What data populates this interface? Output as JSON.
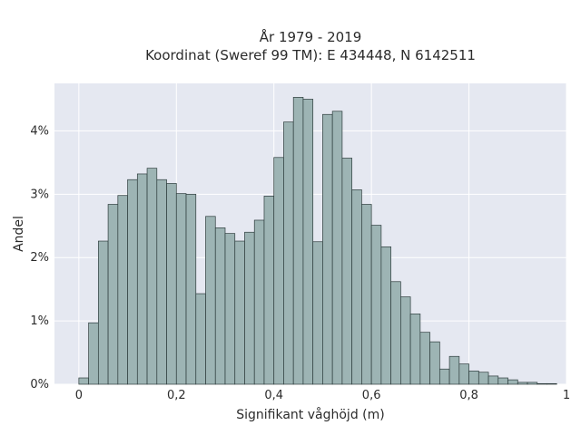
{
  "chart_data": {
    "type": "bar",
    "title_line1": "År 1979 - 2019",
    "title_line2": "Koordinat (Sweref 99 TM): E 434448, N 6142511",
    "xlabel": "Signifikant våghöjd (m)",
    "ylabel": "Andel",
    "xlim": [
      -0.05,
      1.0
    ],
    "ylim": [
      0,
      0.0475
    ],
    "x_ticks": [
      {
        "value": 0,
        "label": "0"
      },
      {
        "value": 0.2,
        "label": "0,2"
      },
      {
        "value": 0.4,
        "label": "0,4"
      },
      {
        "value": 0.6,
        "label": "0,6"
      },
      {
        "value": 0.8,
        "label": "0,8"
      },
      {
        "value": 1.0,
        "label": "1"
      }
    ],
    "y_ticks": [
      {
        "value": 0,
        "label": "0%"
      },
      {
        "value": 0.01,
        "label": "1%"
      },
      {
        "value": 0.02,
        "label": "2%"
      },
      {
        "value": 0.03,
        "label": "3%"
      },
      {
        "value": 0.04,
        "label": "4%"
      }
    ],
    "bin_width": 0.02,
    "bin_start": 0.0,
    "values": [
      0.001,
      0.0097,
      0.0226,
      0.0284,
      0.0298,
      0.0323,
      0.0332,
      0.0341,
      0.0323,
      0.0317,
      0.0301,
      0.03,
      0.0143,
      0.0265,
      0.0247,
      0.0238,
      0.0226,
      0.024,
      0.0259,
      0.0297,
      0.0358,
      0.0414,
      0.0453,
      0.045,
      0.0225,
      0.0426,
      0.0431,
      0.0357,
      0.0307,
      0.0284,
      0.0251,
      0.0217,
      0.0162,
      0.0138,
      0.0111,
      0.0082,
      0.0067,
      0.0024,
      0.0044,
      0.0032,
      0.0021,
      0.0019,
      0.0013,
      0.001,
      0.0007,
      0.0003,
      0.0003,
      0.0001,
      0.0001
    ],
    "colors": {
      "plot_bg": "#e5e8f1",
      "grid": "#ffffff",
      "bar_fill": "#9db4b4",
      "bar_stroke": "#2e3d3d"
    },
    "grid": true
  }
}
